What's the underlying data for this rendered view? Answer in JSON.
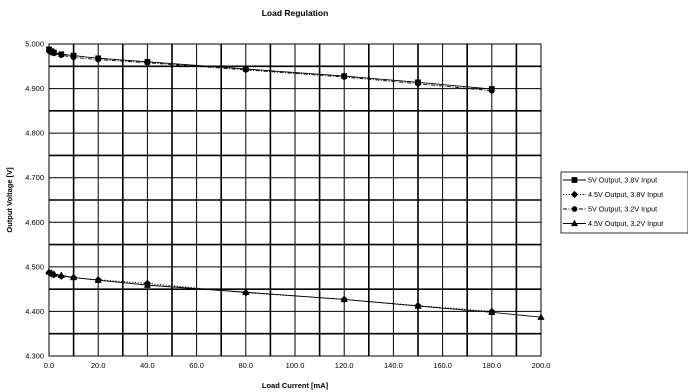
{
  "chart_data": {
    "type": "line",
    "title": "Load Regulation",
    "xlabel": "Load Current [mA]",
    "ylabel": "Output Voltage [V]",
    "xlim": [
      0,
      200
    ],
    "ylim": [
      4.3,
      5.0
    ],
    "x_ticks": [
      "0.0",
      "20.0",
      "40.0",
      "60.0",
      "80.0",
      "100.0",
      "120.0",
      "140.0",
      "160.0",
      "180.0",
      "200.0"
    ],
    "y_ticks": [
      "4.300",
      "4.400",
      "4.500",
      "4.600",
      "4.700",
      "4.800",
      "4.900",
      "5.000"
    ],
    "grid": true,
    "legend_position": "right",
    "series": [
      {
        "name": "5V Output, 3.8V Input",
        "marker": "square",
        "line": "solid",
        "x": [
          0,
          1,
          2,
          5,
          10,
          20,
          40,
          80,
          120,
          150,
          180
        ],
        "y": [
          4.988,
          4.984,
          4.981,
          4.977,
          4.974,
          4.968,
          4.96,
          4.944,
          4.928,
          4.914,
          4.899
        ]
      },
      {
        "name": "4.5V Output, 3.8V Input",
        "marker": "diamond",
        "line": "dotted",
        "x": [
          0,
          1,
          2,
          5,
          10,
          20,
          40,
          80,
          120,
          150,
          180
        ],
        "y": [
          4.487,
          4.484,
          4.482,
          4.479,
          4.476,
          4.471,
          4.463,
          4.442,
          4.427,
          4.413,
          4.4
        ]
      },
      {
        "name": "5V Output, 3.2V Input",
        "marker": "circle",
        "line": "dashdot",
        "x": [
          0,
          1,
          2,
          5,
          10,
          20,
          40,
          80,
          120,
          150,
          180
        ],
        "y": [
          4.984,
          4.981,
          4.979,
          4.975,
          4.97,
          4.965,
          4.958,
          4.942,
          4.926,
          4.911,
          4.895
        ]
      },
      {
        "name": "4.5V Output, 3.2V Input",
        "marker": "triangle",
        "line": "solid",
        "x": [
          0,
          1,
          2,
          5,
          10,
          20,
          40,
          80,
          120,
          150,
          180,
          200
        ],
        "y": [
          4.489,
          4.486,
          4.484,
          4.481,
          4.476,
          4.47,
          4.459,
          4.443,
          4.427,
          4.412,
          4.398,
          4.387
        ]
      }
    ]
  }
}
